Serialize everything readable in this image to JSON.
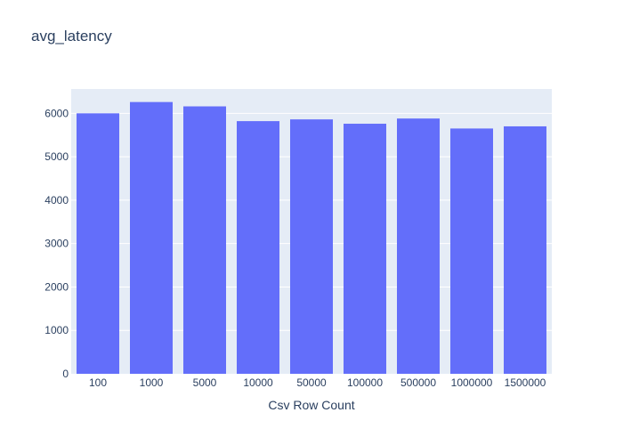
{
  "chart_data": {
    "type": "bar",
    "title": "avg_latency",
    "xlabel": "Csv Row Count",
    "ylabel": "",
    "categories": [
      "100",
      "1000",
      "5000",
      "10000",
      "50000",
      "100000",
      "500000",
      "1000000",
      "1500000"
    ],
    "values": [
      6000,
      6260,
      6160,
      5820,
      5860,
      5760,
      5880,
      5650,
      5700
    ],
    "ylim": [
      0,
      6560
    ],
    "yticks": [
      0,
      1000,
      2000,
      3000,
      4000,
      5000,
      6000
    ],
    "grid": true,
    "legend": "none",
    "bar_color": "#636efa",
    "plot_bg": "#e5ecf6"
  }
}
